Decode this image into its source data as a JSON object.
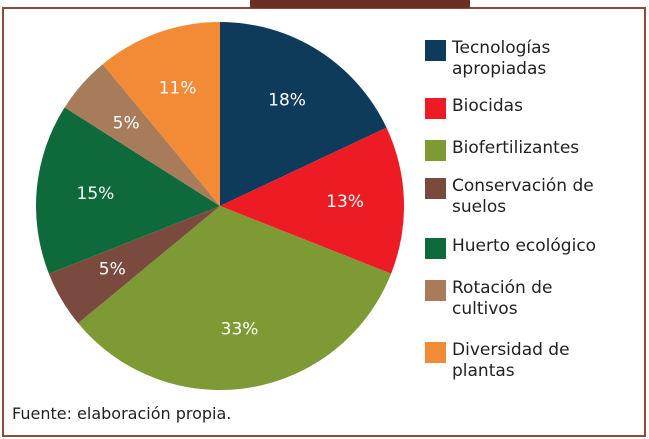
{
  "chart_data": {
    "type": "pie",
    "categories": [
      "Tecnologías apropiadas",
      "Biocidas",
      "Biofertilizantes",
      "Conservación de suelos",
      "Huerto ecológico",
      "Rotación de cultivos",
      "Diversidad de plantas"
    ],
    "values": [
      18,
      13,
      33,
      5,
      15,
      5,
      11
    ],
    "value_labels": [
      "18%",
      "13%",
      "33%",
      "5%",
      "15%",
      "5%",
      "11%"
    ],
    "colors": [
      "#0e3a5c",
      "#ed1c24",
      "#7d9a34",
      "#7b4a3f",
      "#0e6a3b",
      "#a87c5a",
      "#f28a36"
    ],
    "source": "Fuente: elaboración propia."
  }
}
